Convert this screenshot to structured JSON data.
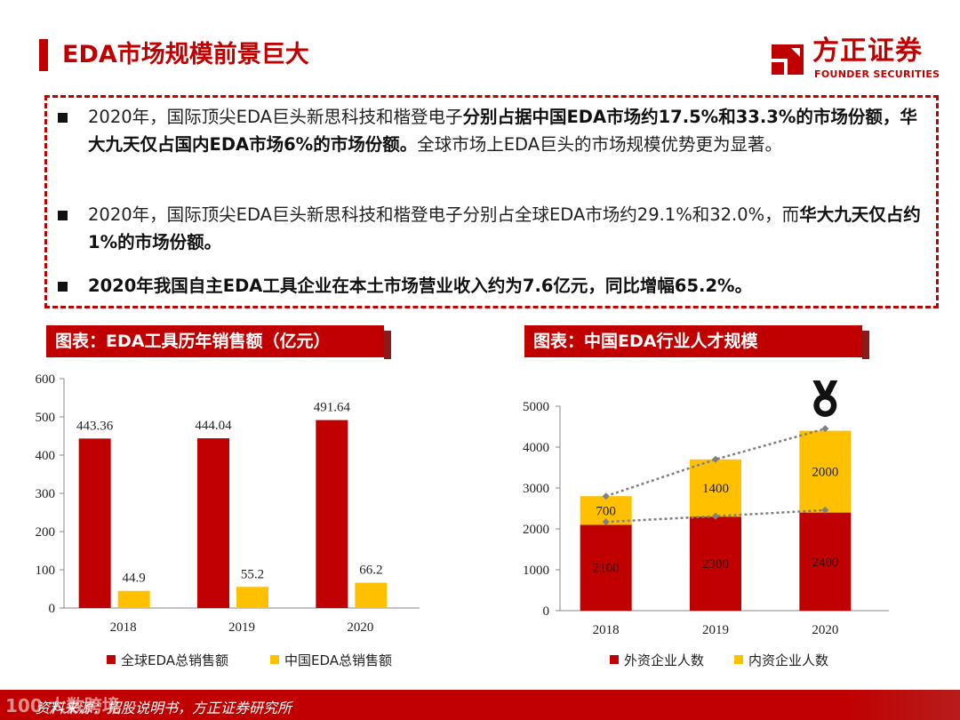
{
  "page": {
    "title": "EDA市场规模前景巨大"
  },
  "logo": {
    "name": "方正证券",
    "subtitle": "FOUNDER SECURITIES",
    "color": "#c00000"
  },
  "bullets": [
    {
      "parts": [
        {
          "text": "2020年，国际顶尖EDA巨头新思科技和楷登电子",
          "bold": false
        },
        {
          "text": "分别占据中国EDA市场约17.5%和33.3%的市场份额，华大九天仅占国内EDA市场6%的市场份额。",
          "bold": true
        },
        {
          "text": "全球市场上EDA巨头的市场规模优势更为显著。",
          "bold": false
        }
      ]
    },
    {
      "parts": [
        {
          "text": "2020年，国际顶尖EDA巨头新思科技和楷登电子分别占全球EDA市场约29.1%和32.0%，而",
          "bold": false
        },
        {
          "text": "华大九天仅占约1%的市场份额。",
          "bold": true
        }
      ]
    },
    {
      "parts": [
        {
          "text": "2020年我国自主EDA工具企业在本土市场营业收入约为7.6亿元，同比增幅65.2%。",
          "bold": true
        }
      ]
    }
  ],
  "panels": {
    "left_title": "图表：EDA工具历年销售额（亿元）",
    "right_title": "图表：中国EDA行业人才规模"
  },
  "chart_data": [
    {
      "type": "bar",
      "title": "图表：EDA工具历年销售额（亿元）",
      "categories": [
        "2018",
        "2019",
        "2020"
      ],
      "series": [
        {
          "name": "全球EDA总销售额",
          "values": [
            443.36,
            444.04,
            491.64
          ],
          "labels": [
            "443.36",
            "444.04",
            "491.64"
          ],
          "color": "#c00000"
        },
        {
          "name": "中国EDA总销售额",
          "values": [
            44.9,
            55.2,
            66.2
          ],
          "labels": [
            "44.9",
            "55.2",
            "66.2"
          ],
          "color": "#ffc000"
        }
      ],
      "ylim": [
        0,
        600
      ],
      "yticks": [
        "0",
        "100",
        "200",
        "300",
        "400",
        "500",
        "600"
      ],
      "xlabel": "",
      "ylabel": "",
      "grid": false,
      "legend": "bottom"
    },
    {
      "type": "bar",
      "stacked": true,
      "title": "图表：中国EDA行业人才规模",
      "categories": [
        "2018",
        "2019",
        "2020"
      ],
      "series": [
        {
          "name": "外资企业人数",
          "values": [
            2100,
            2300,
            2400
          ],
          "labels": [
            "2100",
            "2300",
            "2400"
          ],
          "color": "#c00000"
        },
        {
          "name": "内资企业人数",
          "values": [
            700,
            1400,
            2000
          ],
          "labels": [
            "700",
            "1400",
            "2000"
          ],
          "color": "#ffc000"
        }
      ],
      "trendlines": [
        {
          "name": "总人数趋势",
          "values": [
            2800,
            3700,
            4450
          ],
          "color": "#808080"
        },
        {
          "name": "外资企业人数趋势",
          "values": [
            2170,
            2310,
            2460
          ],
          "color": "#808080"
        }
      ],
      "ylim": [
        0,
        5000
      ],
      "yticks": [
        "0",
        "1000",
        "2000",
        "3000",
        "4000",
        "5000"
      ],
      "xlabel": "",
      "ylabel": "",
      "grid": false,
      "legend": "bottom",
      "annotation_icon": "medal-icon"
    }
  ],
  "footer": {
    "source": "资料来源：招股说明书，方正证券研究所",
    "watermark": "100 大数跨境"
  }
}
